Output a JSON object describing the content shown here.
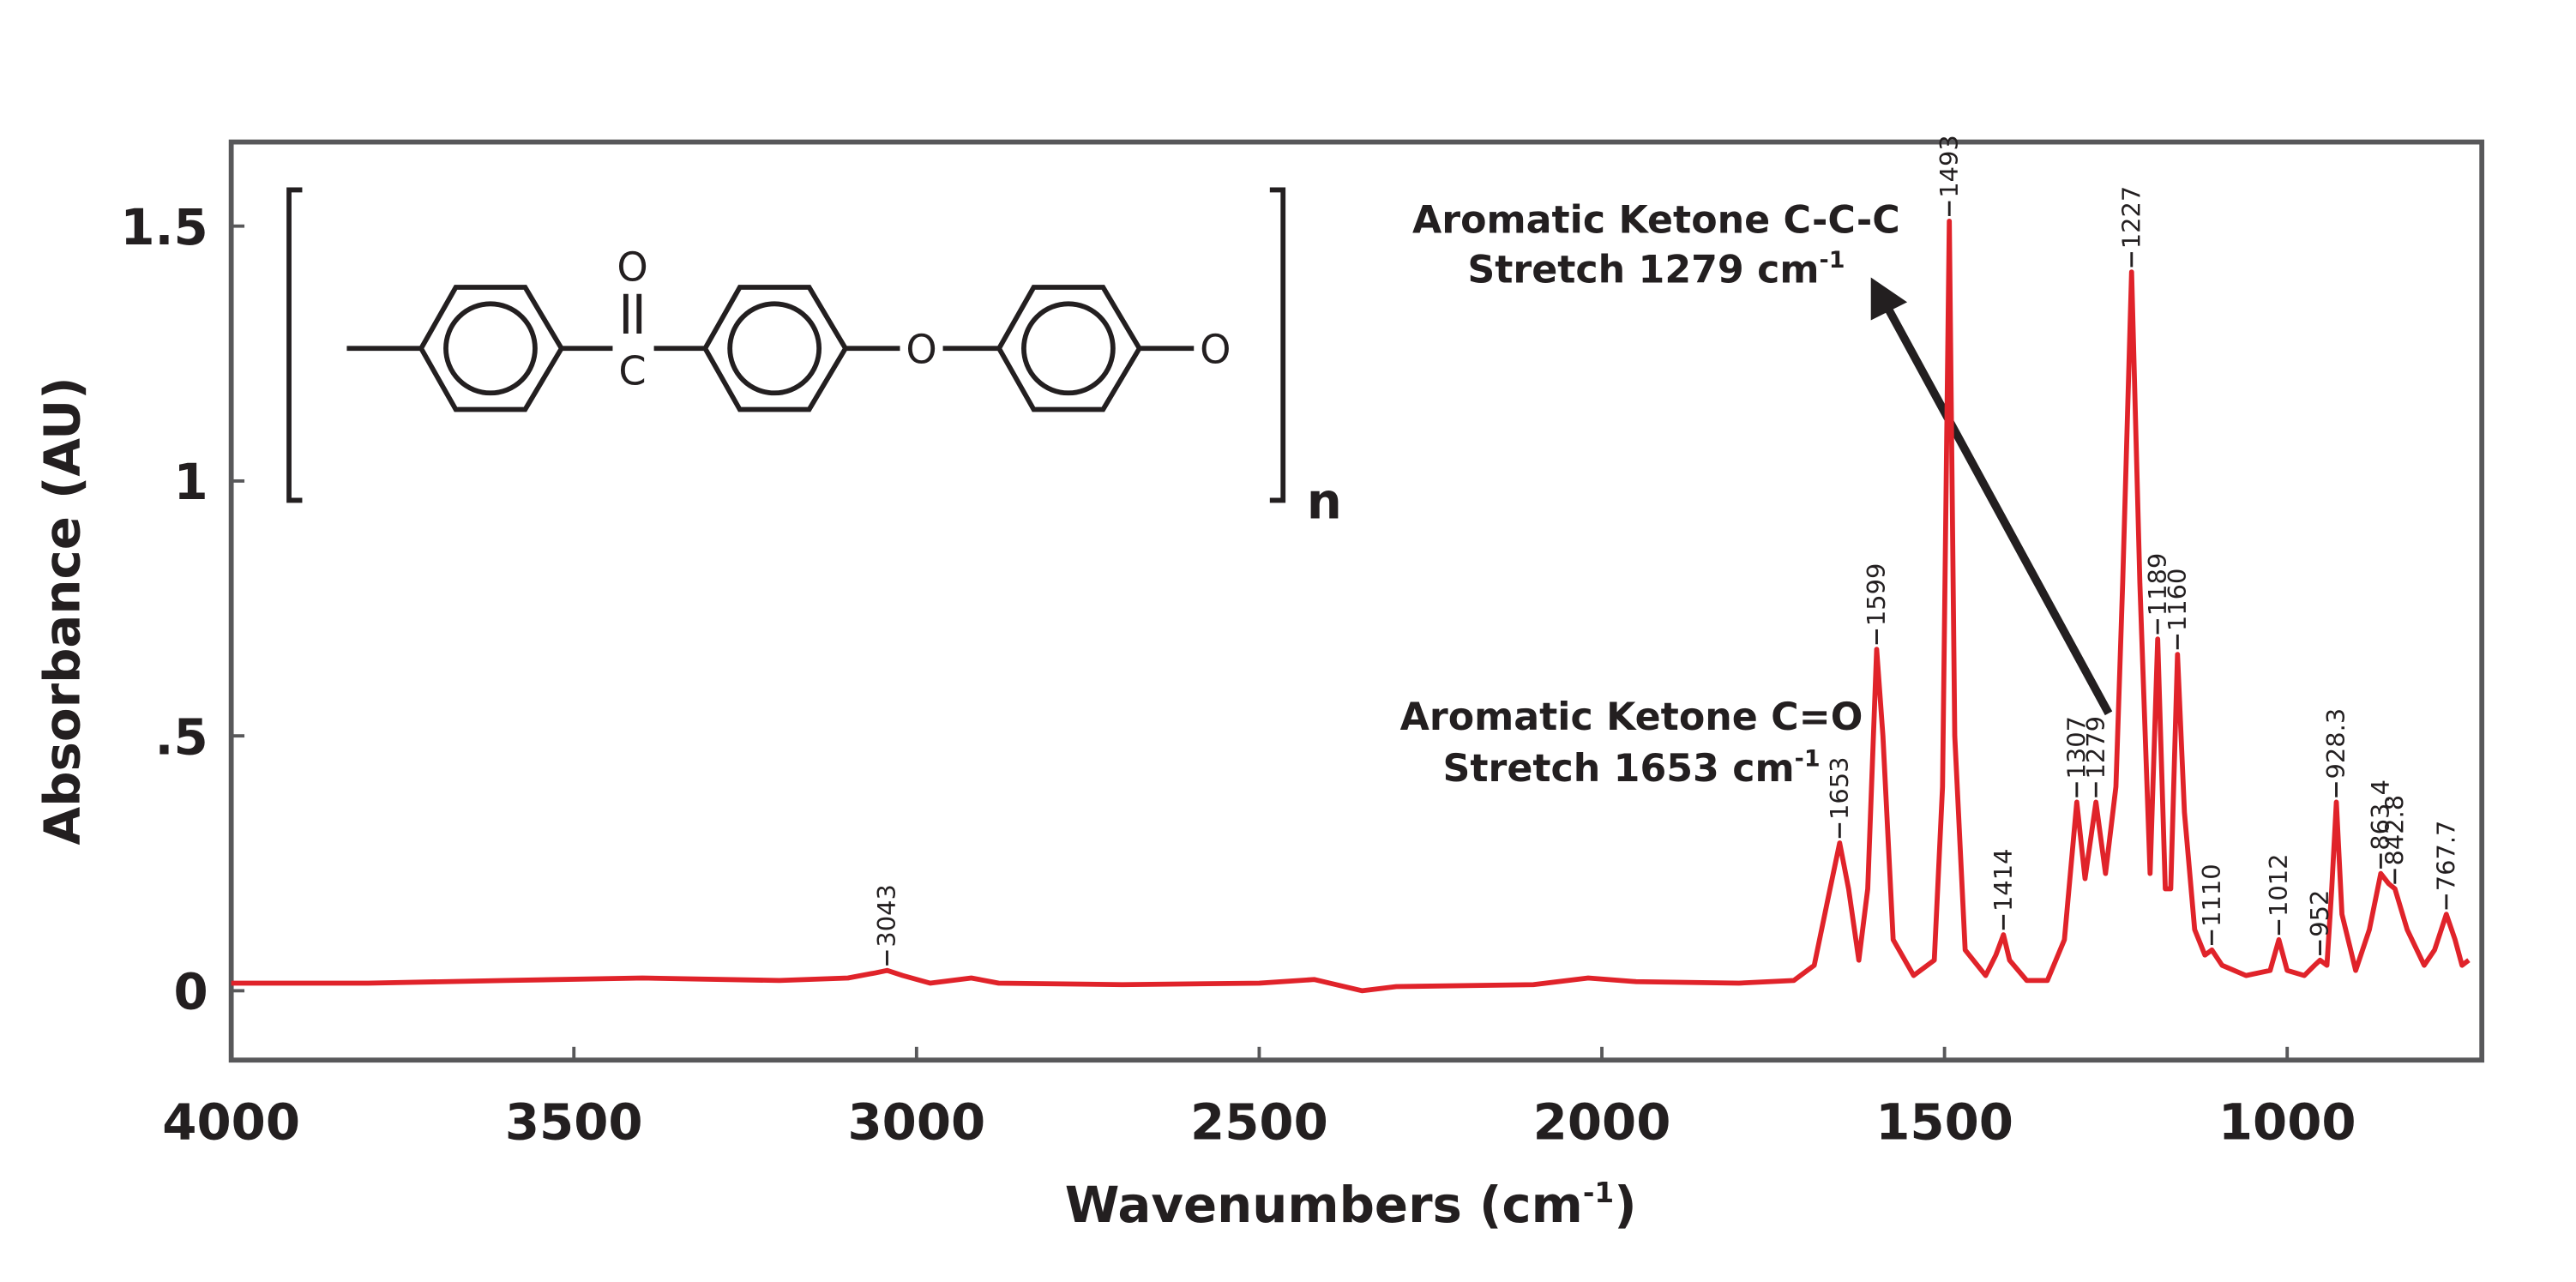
{
  "chart_data": {
    "type": "line",
    "ylabel": "Absorbance (AU)",
    "xlabel": {
      "text": "Wavenumbers (cm",
      "sup": "-1",
      "tail": ")"
    },
    "xlim": [
      4000,
      716
    ],
    "xticks": [
      4000,
      3500,
      3000,
      2500,
      2000,
      1500,
      1000
    ],
    "ylim": [
      -0.136,
      1.665
    ],
    "yticks": [
      0,
      {
        "value": 0.5,
        "label": ".5"
      },
      1,
      1.5
    ],
    "color": "#e0232a",
    "x": [
      4000,
      3800,
      3600,
      3400,
      3200,
      3100,
      3060,
      3043,
      3020,
      2980,
      2920,
      2880,
      2700,
      2500,
      2420,
      2350,
      2300,
      2100,
      2020,
      1950,
      1800,
      1720,
      1690,
      1670,
      1653,
      1640,
      1625,
      1612,
      1599,
      1590,
      1575,
      1545,
      1515,
      1503,
      1493,
      1485,
      1470,
      1440,
      1425,
      1414,
      1405,
      1380,
      1350,
      1325,
      1307,
      1295,
      1279,
      1265,
      1250,
      1240,
      1227,
      1215,
      1200,
      1189,
      1178,
      1170,
      1160,
      1150,
      1135,
      1120,
      1110,
      1095,
      1060,
      1025,
      1012,
      1000,
      975,
      960,
      952,
      942,
      935,
      928.3,
      920,
      900,
      880,
      863.4,
      852,
      842.8,
      825,
      800,
      785,
      767.7,
      755,
      745,
      735
    ],
    "values": [
      0.015,
      0.015,
      0.02,
      0.025,
      0.02,
      0.025,
      0.035,
      0.04,
      0.03,
      0.015,
      0.025,
      0.015,
      0.012,
      0.015,
      0.022,
      0.0,
      0.008,
      0.012,
      0.025,
      0.018,
      0.015,
      0.02,
      0.05,
      0.18,
      0.29,
      0.2,
      0.06,
      0.2,
      0.67,
      0.5,
      0.1,
      0.03,
      0.06,
      0.4,
      1.51,
      0.5,
      0.08,
      0.03,
      0.07,
      0.11,
      0.06,
      0.02,
      0.02,
      0.1,
      0.37,
      0.22,
      0.37,
      0.23,
      0.4,
      0.8,
      1.41,
      0.8,
      0.23,
      0.69,
      0.2,
      0.2,
      0.66,
      0.35,
      0.12,
      0.07,
      0.08,
      0.05,
      0.03,
      0.04,
      0.1,
      0.04,
      0.03,
      0.05,
      0.06,
      0.05,
      0.2,
      0.37,
      0.15,
      0.04,
      0.12,
      0.23,
      0.21,
      0.2,
      0.12,
      0.05,
      0.08,
      0.15,
      0.1,
      0.05,
      0.06
    ],
    "peak_labels": [
      3043,
      1653,
      1599,
      1493,
      1414,
      1307,
      1279,
      1227,
      1189,
      1160,
      1110,
      1012,
      952,
      928.3,
      863.4,
      842.8,
      767.7
    ],
    "annotations": [
      {
        "lines": [
          "Aromatic Ketone C-C-C",
          "Stretch 1279 cm"
        ],
        "sup": "-1"
      },
      {
        "lines": [
          "Aromatic Ketone C=O",
          "Stretch 1653 cm"
        ],
        "sup": "-1"
      }
    ],
    "structure": {
      "atoms": [
        "O",
        "C",
        "O",
        "O"
      ],
      "repeat": "n"
    }
  }
}
